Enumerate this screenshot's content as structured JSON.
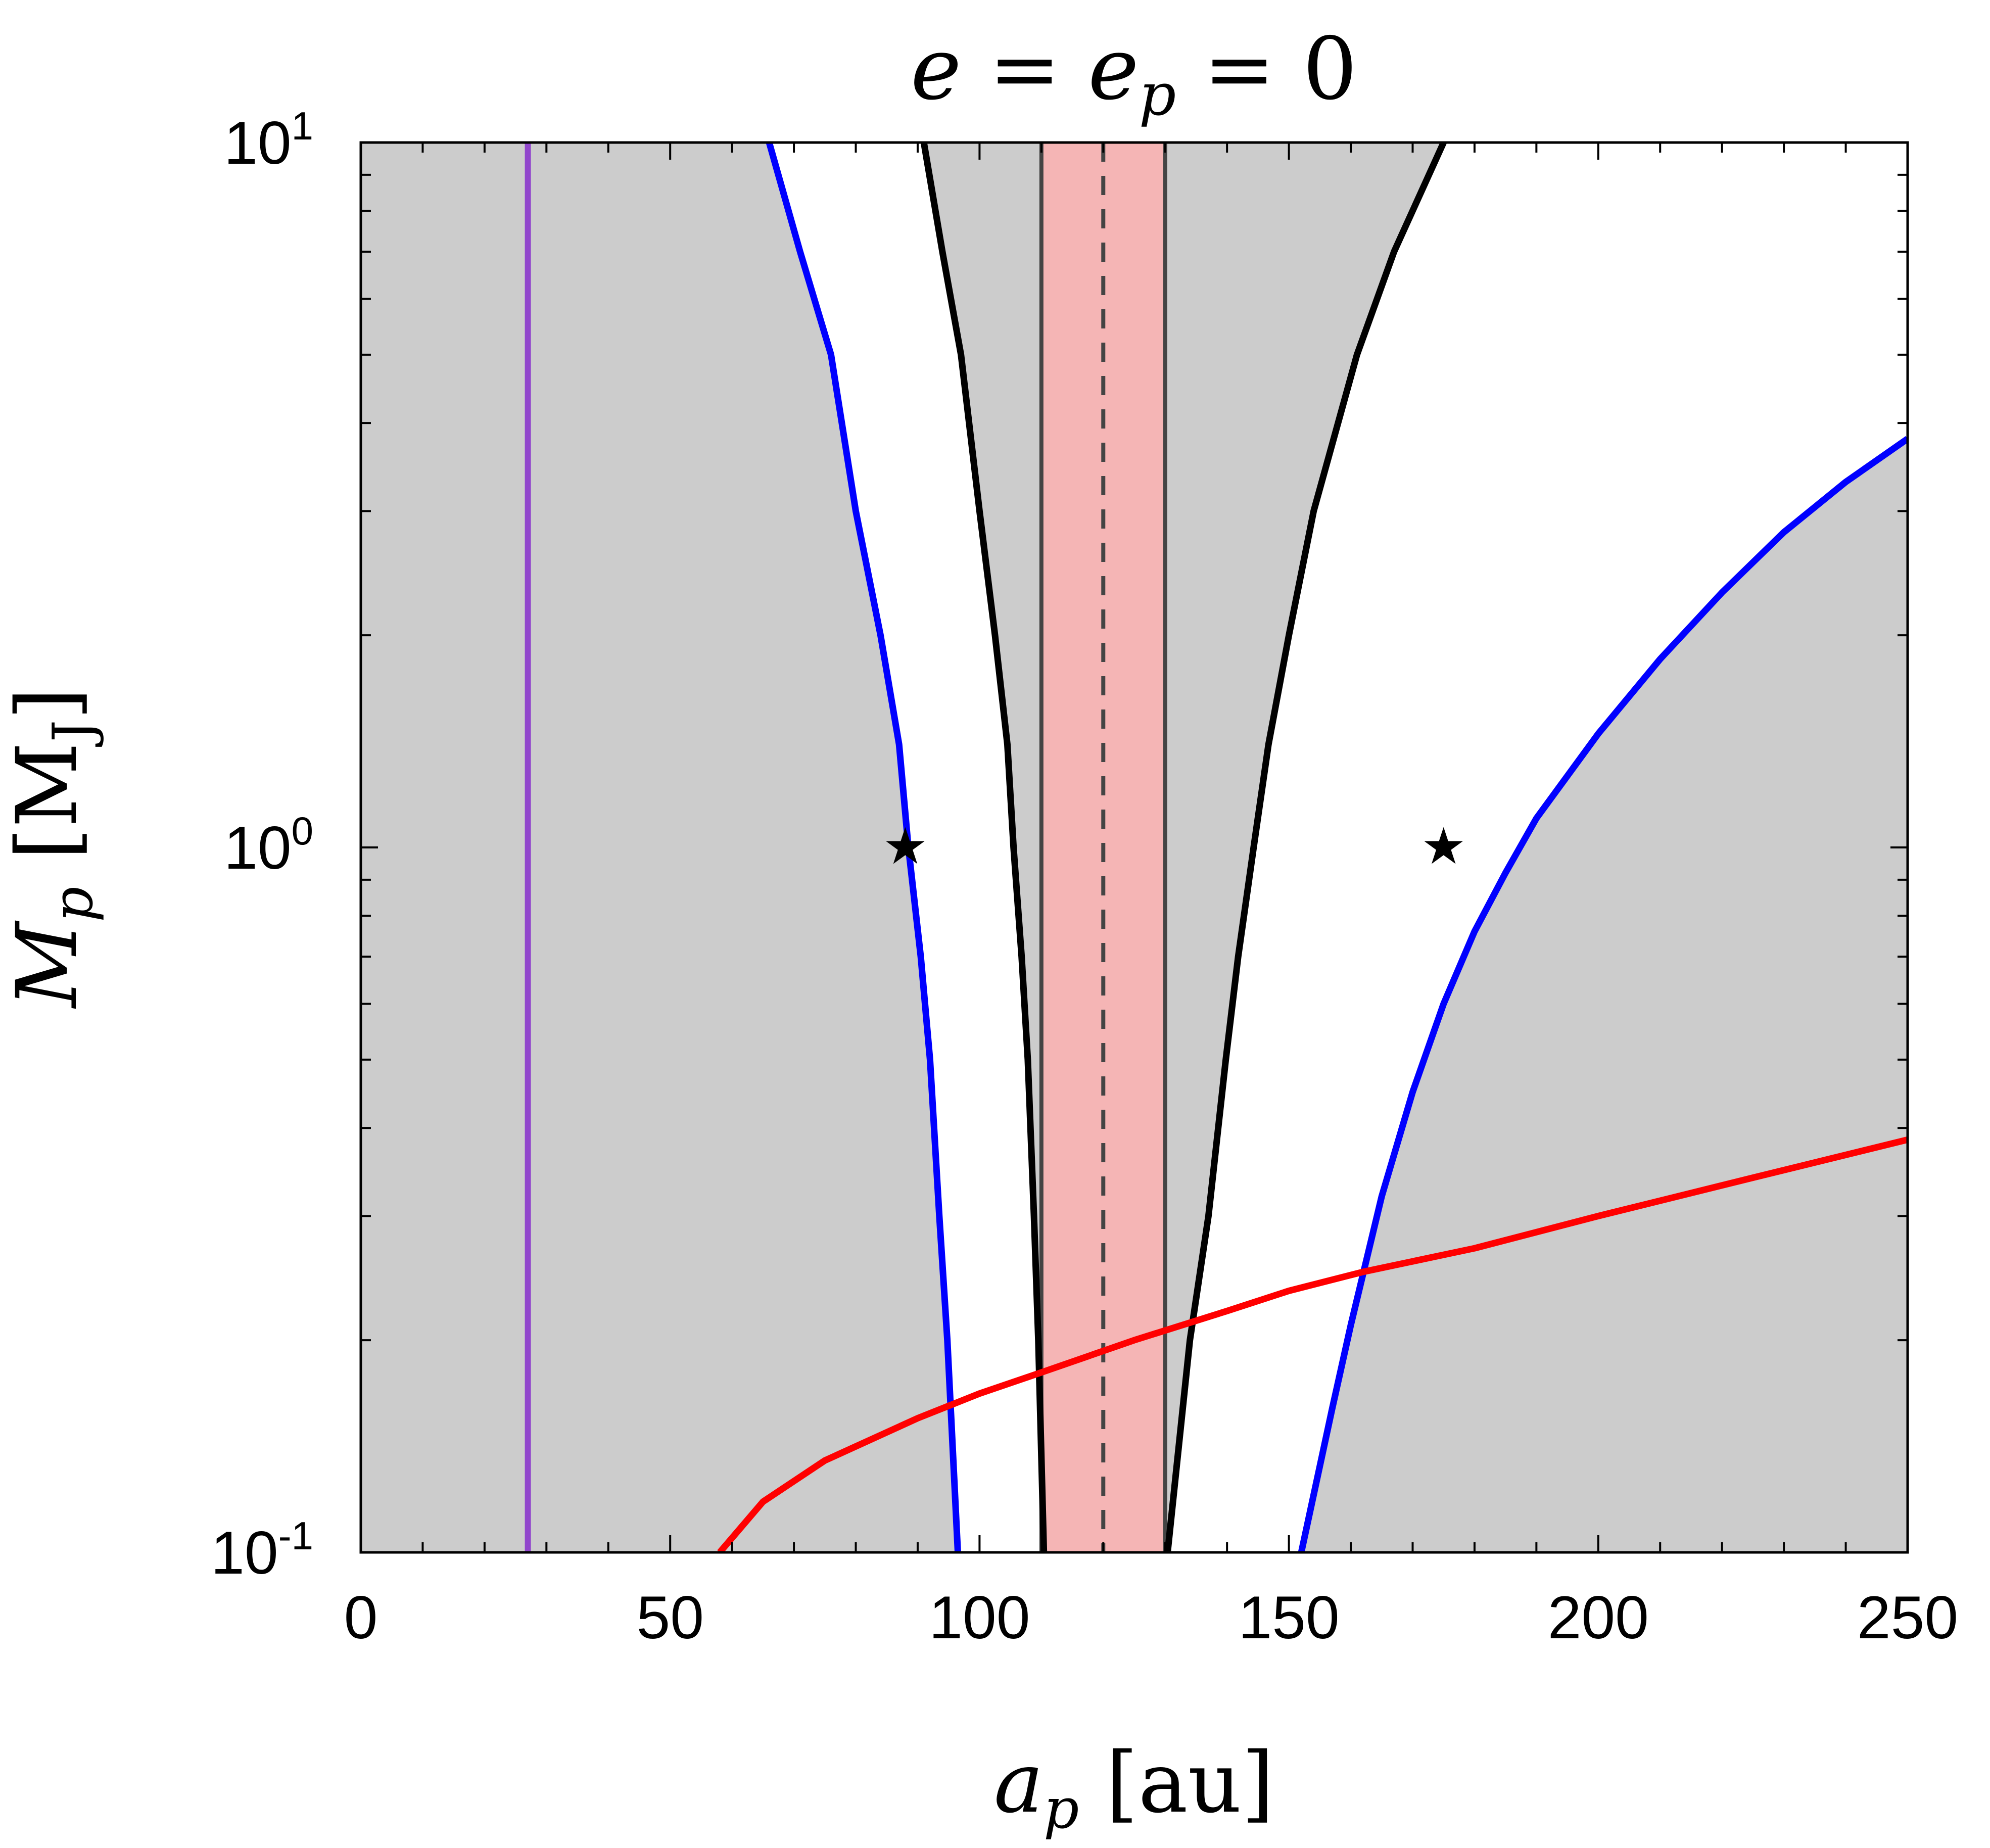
{
  "chart_data": {
    "type": "line",
    "title": {
      "main": "e = e",
      "sub": "p",
      "tail": " = 0"
    },
    "xlabel": {
      "main": "a",
      "sub": "p",
      "unit": " [au]"
    },
    "ylabel": {
      "main": "M",
      "sub": "p",
      "unit_open": " [M",
      "unit_sub": "J",
      "unit_close": "]"
    },
    "xlim": [
      0,
      250
    ],
    "ylim": [
      0.1,
      10
    ],
    "yscale": "log",
    "grid": false,
    "x_ticks": [
      {
        "value": 0,
        "label": "0"
      },
      {
        "value": 50,
        "label": "50"
      },
      {
        "value": 100,
        "label": "100"
      },
      {
        "value": 150,
        "label": "150"
      },
      {
        "value": 200,
        "label": "200"
      },
      {
        "value": 250,
        "label": "250"
      }
    ],
    "y_ticks": [
      {
        "value": 0.1,
        "base": "10",
        "exp": "-1"
      },
      {
        "value": 1,
        "base": "10",
        "exp": "0"
      },
      {
        "value": 10,
        "base": "10",
        "exp": "1"
      }
    ],
    "colors": {
      "shade": "#cccccc",
      "band": "#f5b5b5",
      "blue": "#0000ff",
      "black": "#000000",
      "red": "#ff0000",
      "purple": "#9146cc",
      "dark": "#444444"
    },
    "vertical_lines": [
      {
        "name": "purple-line",
        "x": 27,
        "color": "#9146cc",
        "style": "solid"
      },
      {
        "name": "band-left-edge",
        "x": 110,
        "color": "#444444",
        "style": "solid"
      },
      {
        "name": "band-center",
        "x": 120,
        "color": "#444444",
        "style": "dashed"
      },
      {
        "name": "band-right-edge",
        "x": 130,
        "color": "#444444",
        "style": "solid"
      }
    ],
    "band": {
      "x0": 110,
      "x1": 130,
      "color": "#f5b5b5"
    },
    "series": [
      {
        "key": "blue-inner",
        "color": "#0000ff",
        "points": [
          [
            66,
            10
          ],
          [
            71,
            7
          ],
          [
            76,
            5
          ],
          [
            80,
            3
          ],
          [
            84,
            2
          ],
          [
            87,
            1.4
          ],
          [
            88.5,
            1
          ],
          [
            90.5,
            0.7
          ],
          [
            92,
            0.5
          ],
          [
            93.5,
            0.3
          ],
          [
            94.8,
            0.2
          ],
          [
            96.5,
            0.1
          ]
        ]
      },
      {
        "key": "black-inner",
        "color": "#000000",
        "points": [
          [
            91,
            10
          ],
          [
            94,
            7
          ],
          [
            97,
            5
          ],
          [
            100,
            3
          ],
          [
            102.5,
            2
          ],
          [
            104.5,
            1.4
          ],
          [
            105.5,
            1
          ],
          [
            106.8,
            0.7
          ],
          [
            107.8,
            0.5
          ],
          [
            108.8,
            0.3
          ],
          [
            109.5,
            0.2
          ],
          [
            110.4,
            0.1
          ]
        ]
      },
      {
        "key": "black-outer",
        "color": "#000000",
        "points": [
          [
            175,
            10
          ],
          [
            167,
            7
          ],
          [
            161,
            5
          ],
          [
            154,
            3
          ],
          [
            150,
            2
          ],
          [
            146.7,
            1.4
          ],
          [
            144.3,
            1
          ],
          [
            141.8,
            0.7
          ],
          [
            139.8,
            0.5
          ],
          [
            137,
            0.3
          ],
          [
            134,
            0.2
          ],
          [
            130.4,
            0.1
          ]
        ]
      },
      {
        "key": "blue-outer",
        "color": "#0000ff",
        "points": [
          [
            250,
            3.8
          ],
          [
            240,
            3.3
          ],
          [
            230,
            2.8
          ],
          [
            220,
            2.3
          ],
          [
            210,
            1.85
          ],
          [
            200,
            1.45
          ],
          [
            190,
            1.1
          ],
          [
            185,
            0.92
          ],
          [
            180,
            0.76
          ],
          [
            175,
            0.6
          ],
          [
            170,
            0.45
          ],
          [
            165,
            0.32
          ],
          [
            160,
            0.21
          ],
          [
            157,
            0.16
          ],
          [
            152,
            0.1
          ]
        ]
      },
      {
        "key": "red-curve",
        "color": "#ff0000",
        "points": [
          [
            58,
            0.1
          ],
          [
            65,
            0.118
          ],
          [
            75,
            0.135
          ],
          [
            90,
            0.155
          ],
          [
            100,
            0.168
          ],
          [
            110,
            0.18
          ],
          [
            125,
            0.2
          ],
          [
            140,
            0.22
          ],
          [
            150,
            0.235
          ],
          [
            162,
            0.25
          ],
          [
            180,
            0.27
          ],
          [
            200,
            0.3
          ],
          [
            225,
            0.34
          ],
          [
            250,
            0.385
          ]
        ]
      }
    ],
    "markers": [
      {
        "x": 88,
        "y": 1,
        "symbol": "★"
      },
      {
        "x": 175,
        "y": 1,
        "symbol": "★"
      }
    ]
  }
}
